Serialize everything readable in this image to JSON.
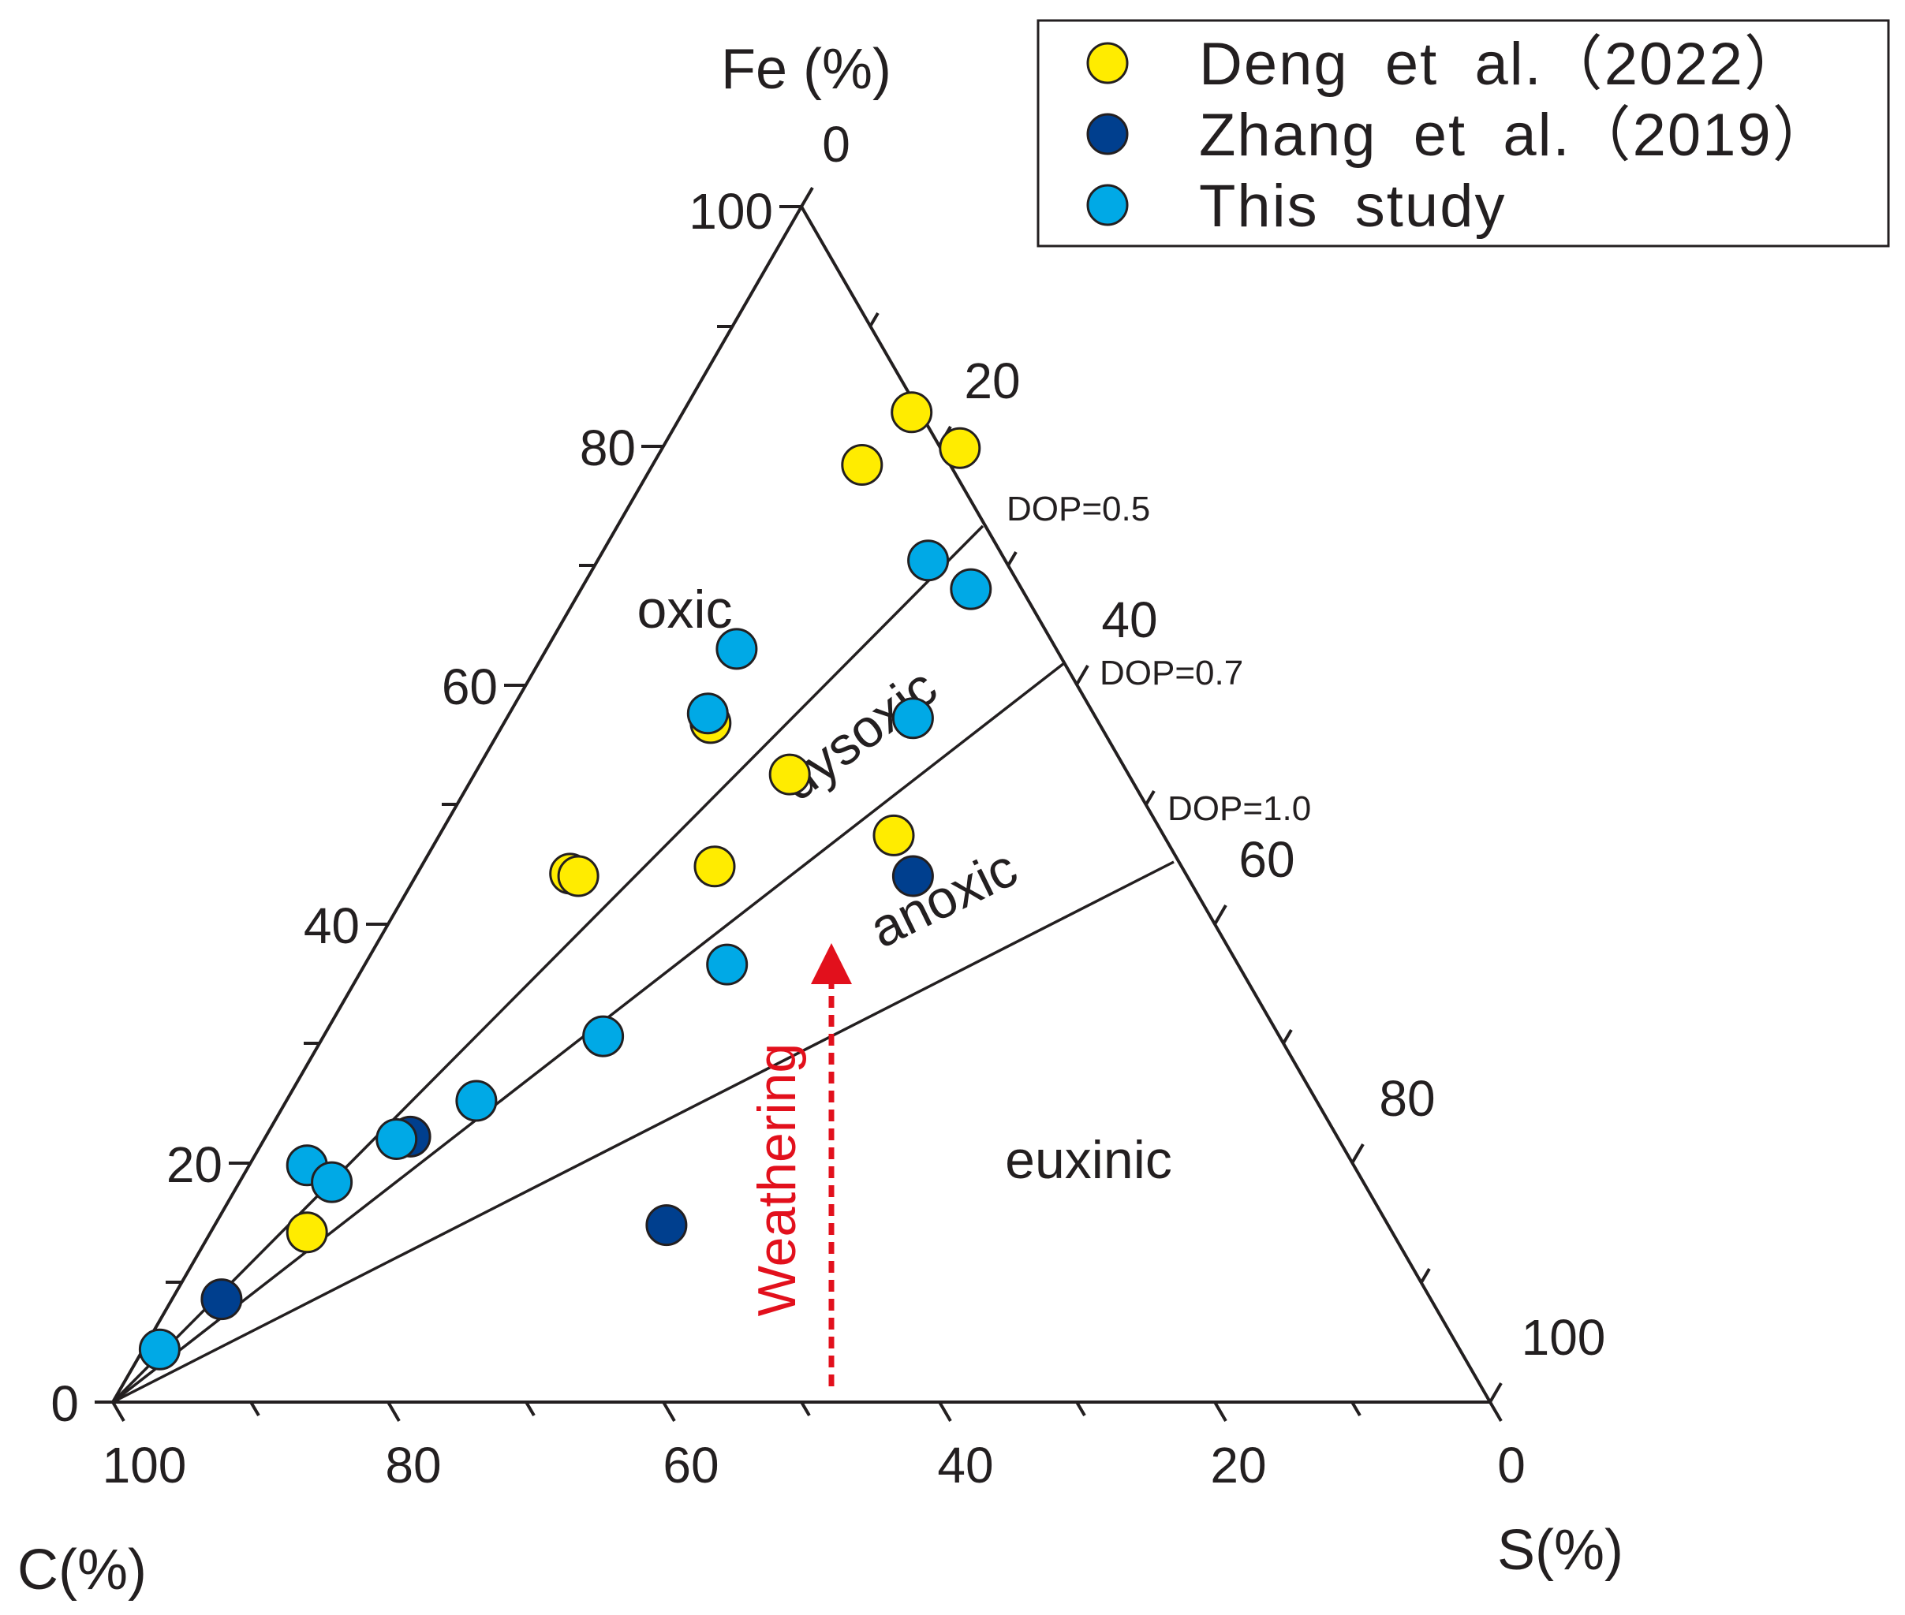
{
  "chart_data": {
    "type": "ternary-scatter",
    "axes": {
      "left": {
        "title": "Fe (%)",
        "ticks": [
          "0",
          "20",
          "40",
          "60",
          "80",
          "100"
        ]
      },
      "right": {
        "title": "S(%)",
        "ticks": [
          "0",
          "20",
          "40",
          "60",
          "80",
          "100"
        ]
      },
      "bottom": {
        "title": "C(%)",
        "ticks": [
          "100",
          "80",
          "60",
          "40",
          "20",
          "0"
        ]
      }
    },
    "lines": [
      {
        "label": "DOP=0.5",
        "fe": 0.5
      },
      {
        "label": "DOP=0.7",
        "fe": 0.3
      },
      {
        "label": "DOP=1.0",
        "fe": 0.0
      }
    ],
    "regions": [
      {
        "label": "oxic"
      },
      {
        "label": "dysoxic"
      },
      {
        "label": "anoxic"
      },
      {
        "label": "euxinic"
      }
    ],
    "annotation": {
      "label": "Weathering",
      "color": "#e2101c"
    },
    "legend": [
      {
        "label": "Deng  et  al.（2022）",
        "color": "#ffec00"
      },
      {
        "label": "Zhang  et  al.（2019）",
        "color": "#003f8e"
      },
      {
        "label": "This  study",
        "color": "#00a9e6"
      }
    ],
    "series": [
      {
        "name": "Deng et al. (2022)",
        "color": "#ffec00",
        "points": [
          {
            "s": 16.6,
            "fe": 82.8
          },
          {
            "s": 15.2,
            "fe": 78.4
          },
          {
            "s": 21.6,
            "fe": 79.8
          },
          {
            "s": 15.0,
            "fe": 56.8
          },
          {
            "s": 22.9,
            "fe": 52.5
          },
          {
            "s": 11.1,
            "fe": 44.2
          },
          {
            "s": 11.8,
            "fe": 44.0
          },
          {
            "s": 21.3,
            "fe": 44.8
          },
          {
            "s": 33.0,
            "fe": 47.4
          },
          {
            "s": 7.0,
            "fe": 14.2
          }
        ]
      },
      {
        "name": "Zhang et al. (2019)",
        "color": "#003f8e",
        "points": [
          {
            "s": 36.1,
            "fe": 44.0
          },
          {
            "s": 10.5,
            "fe": 22.2
          },
          {
            "s": 32.8,
            "fe": 14.8
          },
          {
            "s": 3.6,
            "fe": 8.6
          }
        ]
      },
      {
        "name": "This study",
        "color": "#00a9e6",
        "points": [
          {
            "s": 24.0,
            "fe": 70.4
          },
          {
            "s": 28.3,
            "fe": 68.0
          },
          {
            "s": 29.5,
            "fe": 57.2
          },
          {
            "s": 13.8,
            "fe": 63.0
          },
          {
            "s": 14.4,
            "fe": 57.6
          },
          {
            "s": 26.3,
            "fe": 36.6
          },
          {
            "s": 20.3,
            "fe": 30.6
          },
          {
            "s": 13.8,
            "fe": 25.2
          },
          {
            "s": 9.6,
            "fe": 22.0
          },
          {
            "s": 4.2,
            "fe": 19.8
          },
          {
            "s": 6.7,
            "fe": 18.4
          },
          {
            "s": 1.2,
            "fe": 4.4
          }
        ]
      }
    ]
  }
}
